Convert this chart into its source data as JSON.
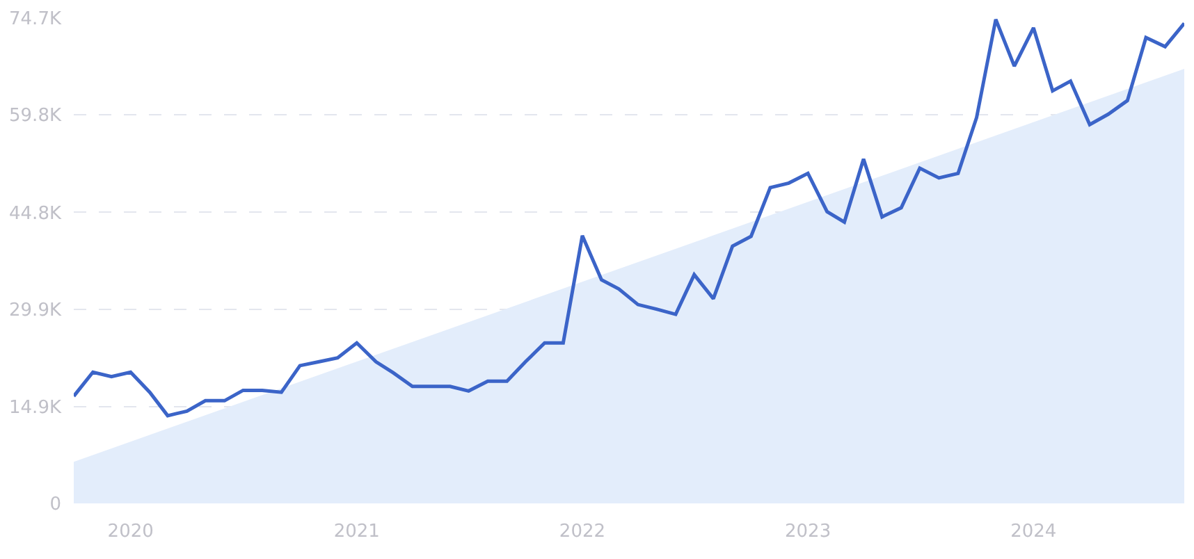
{
  "chart_data": {
    "type": "line",
    "x": [
      "2019-10",
      "2019-11",
      "2019-12",
      "2020-01",
      "2020-02",
      "2020-03",
      "2020-04",
      "2020-05",
      "2020-06",
      "2020-07",
      "2020-08",
      "2020-09",
      "2020-10",
      "2020-11",
      "2020-12",
      "2021-01",
      "2021-02",
      "2021-03",
      "2021-04",
      "2021-05",
      "2021-06",
      "2021-07",
      "2021-08",
      "2021-09",
      "2021-10",
      "2021-11",
      "2021-12",
      "2022-01",
      "2022-02",
      "2022-03",
      "2022-04",
      "2022-05",
      "2022-06",
      "2022-07",
      "2022-08",
      "2022-09",
      "2022-10",
      "2022-11",
      "2022-12",
      "2023-01",
      "2023-02",
      "2023-03",
      "2023-04",
      "2023-05",
      "2023-06",
      "2023-07",
      "2023-08",
      "2023-09",
      "2023-10",
      "2023-11",
      "2023-12",
      "2024-01",
      "2024-02",
      "2024-03",
      "2024-04",
      "2024-05",
      "2024-06",
      "2024-07",
      "2024-08",
      "2024-09"
    ],
    "series": [
      {
        "type": "area",
        "color": "#e3edfb",
        "x": [
          "2019-10",
          "2024-09"
        ],
        "values": [
          6400,
          66900
        ]
      },
      {
        "color": "#3b64c8",
        "values": [
          16500,
          20200,
          19500,
          20200,
          17100,
          13500,
          14200,
          15800,
          15800,
          17400,
          17400,
          17100,
          21200,
          21800,
          22400,
          24700,
          21800,
          20100,
          18000,
          18000,
          18000,
          17300,
          18800,
          18800,
          21800,
          24700,
          24700,
          41200,
          34400,
          33000,
          30600,
          29900,
          29100,
          35200,
          31500,
          39600,
          41100,
          48600,
          49300,
          50800,
          44900,
          43300,
          53000,
          44100,
          45500,
          51600,
          50100,
          50800,
          59400,
          74500,
          67300,
          73200,
          63500,
          65000,
          58300,
          59900,
          62000,
          71700,
          70300,
          73900
        ]
      }
    ],
    "xlim": [
      "2019-10",
      "2024-09"
    ],
    "xticks": [
      {
        "value": "2020-01",
        "label": "2020"
      },
      {
        "value": "2021-01",
        "label": "2021"
      },
      {
        "value": "2022-01",
        "label": "2022"
      },
      {
        "value": "2023-01",
        "label": "2023"
      },
      {
        "value": "2024-01",
        "label": "2024"
      }
    ],
    "ylim": [
      0,
      74700
    ],
    "yticks": [
      0,
      {
        "value": 14900,
        "label": "14.9K"
      },
      {
        "value": 29900,
        "label": "29.9K"
      },
      {
        "value": 44800,
        "label": "44.8K"
      },
      {
        "value": 59800,
        "label": "59.8K"
      },
      {
        "value": 74700,
        "label": "74.7K"
      }
    ],
    "grid": "y",
    "marker": "none",
    "line_style": "solid"
  }
}
